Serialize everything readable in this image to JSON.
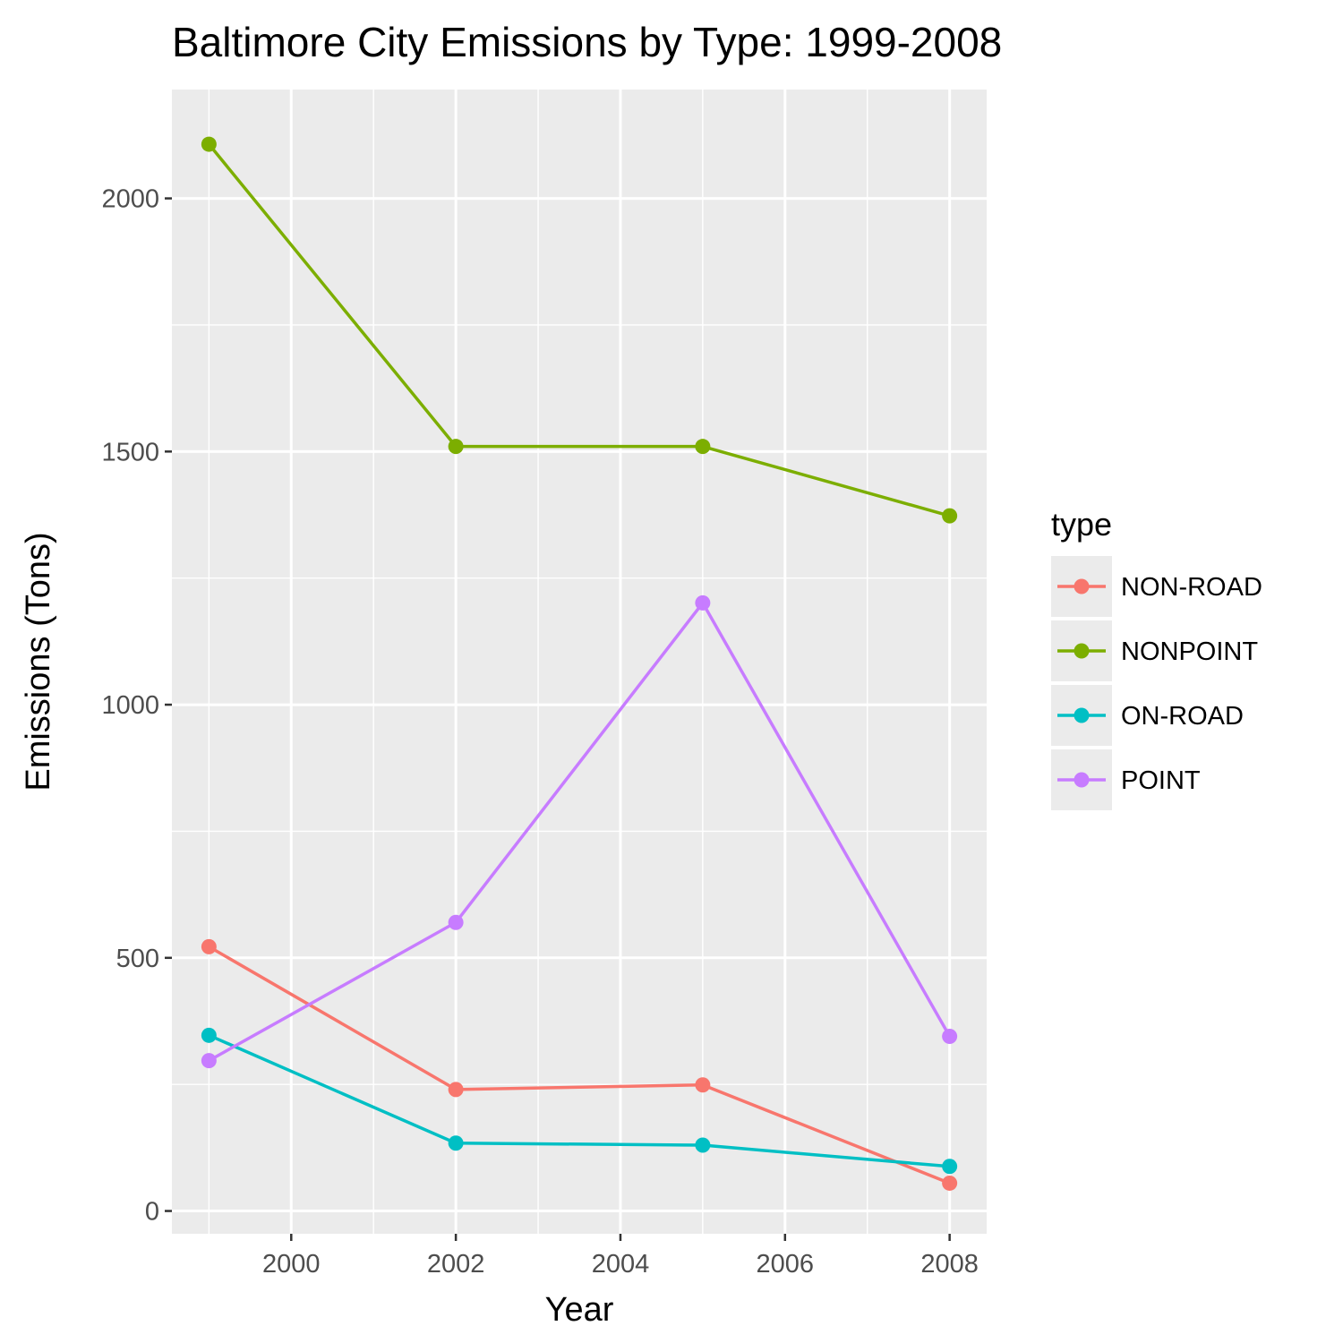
{
  "chart_data": {
    "type": "line",
    "title": "Baltimore City Emissions by Type: 1999-2008",
    "xlabel": "Year",
    "ylabel": "Emissions (Tons)",
    "x": [
      1999,
      2002,
      2005,
      2008
    ],
    "xlim": [
      1998.55,
      2008.45
    ],
    "ylim": [
      -45,
      2215
    ],
    "x_ticks": [
      2000,
      2002,
      2004,
      2006,
      2008
    ],
    "y_ticks": [
      0,
      500,
      1000,
      1500,
      2000
    ],
    "grid": true,
    "legend": {
      "title": "type",
      "position": "right"
    },
    "series": [
      {
        "name": "NON-ROAD",
        "color": "#F8766D",
        "values": [
          522,
          240,
          249,
          55
        ]
      },
      {
        "name": "NONPOINT",
        "color": "#7CAE00",
        "values": [
          2107,
          1510,
          1510,
          1373
        ]
      },
      {
        "name": "ON-ROAD",
        "color": "#00BFC4",
        "values": [
          347,
          134,
          130,
          88
        ]
      },
      {
        "name": "POINT",
        "color": "#C77CFF",
        "values": [
          297,
          570,
          1201,
          345
        ]
      }
    ]
  }
}
